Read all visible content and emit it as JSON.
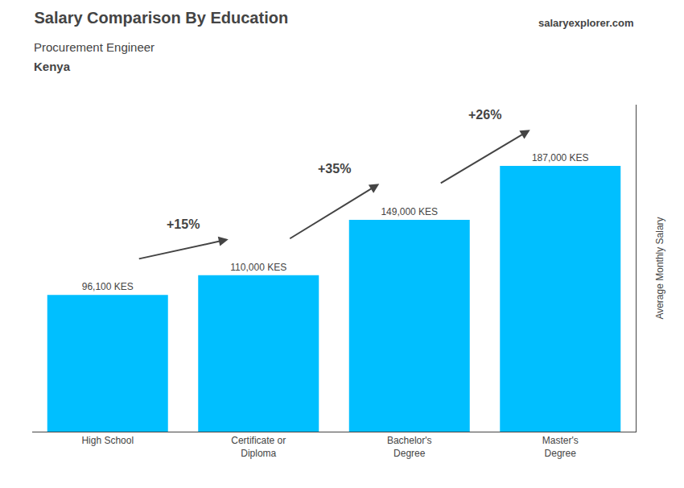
{
  "chart_data": {
    "type": "bar",
    "title": "Salary Comparison By Education",
    "subtitle": "Procurement Engineer",
    "categories": [
      "High School",
      "Certificate or\nDiploma",
      "Bachelor's\nDegree",
      "Master's\nDegree"
    ],
    "values": [
      96100,
      110000,
      149000,
      187000
    ],
    "value_labels": [
      "96,100 KES",
      "110,000 KES",
      "149,000 KES",
      "187,000 KES"
    ],
    "data_labels": true,
    "color": "#00BFFF",
    "ylabel": "Average Monthly Salary",
    "ylim": [
      0,
      230000
    ],
    "grid": false,
    "tick_labels": "x",
    "annotations": [
      "+15%",
      "+35%",
      "+26%",
      "Kenya",
      "salary",
      "explorer",
      ".com"
    ]
  }
}
